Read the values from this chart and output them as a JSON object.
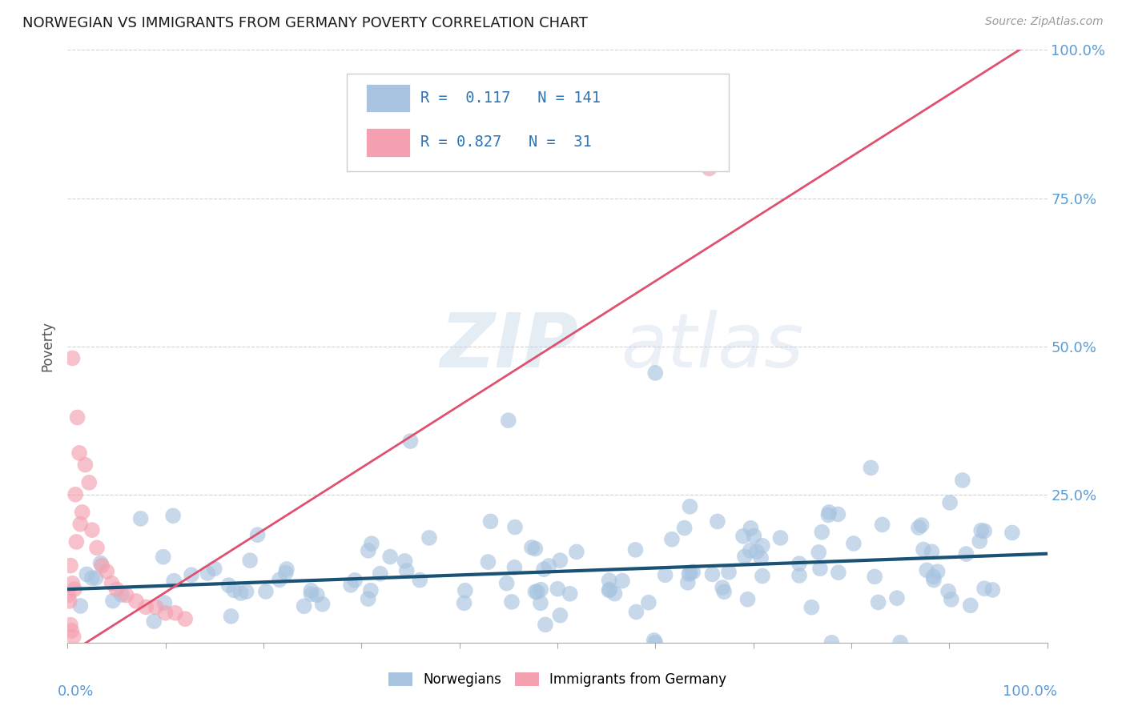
{
  "title": "NORWEGIAN VS IMMIGRANTS FROM GERMANY POVERTY CORRELATION CHART",
  "source": "Source: ZipAtlas.com",
  "ylabel": "Poverty",
  "r_norwegian": 0.117,
  "n_norwegian": 141,
  "r_germany": 0.827,
  "n_germany": 31,
  "norwegian_color": "#a8c4e0",
  "germany_color": "#f4a0b0",
  "norwegian_line_color": "#1a5276",
  "germany_line_color": "#e05070",
  "watermark_zip": "ZIP",
  "watermark_atlas": "atlas",
  "background_color": "#ffffff",
  "legend_nor_text": "R =  0.117   N = 141",
  "legend_ger_text": "R = 0.827   N =  31",
  "legend_text_color": "#2e75b6",
  "ytick_labels": [
    "25.0%",
    "50.0%",
    "75.0%",
    "100.0%"
  ],
  "ytick_values": [
    0.25,
    0.5,
    0.75,
    1.0
  ],
  "title_fontsize": 13,
  "source_fontsize": 10,
  "axis_label_color": "#5b9bd5",
  "nor_line_slope": 0.06,
  "nor_line_intercept": 0.09,
  "ger_line_slope": 1.05,
  "ger_line_intercept": -0.02
}
